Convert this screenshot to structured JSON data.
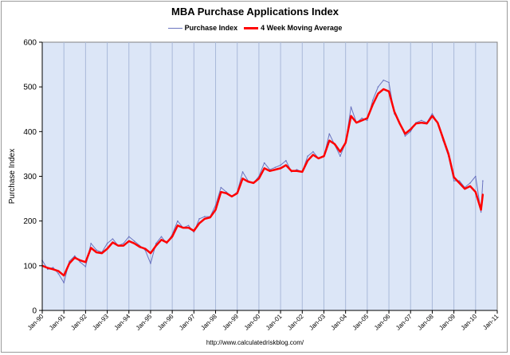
{
  "chart_data": {
    "type": "line",
    "title": "MBA Purchase Applications Index",
    "ylabel": "Purchase Index",
    "xlabel": "",
    "ylim": [
      0,
      600
    ],
    "yticks": [
      0,
      100,
      200,
      300,
      400,
      500,
      600
    ],
    "xlim": [
      1990.0,
      2011.0
    ],
    "xticks": [
      "Jan-90",
      "Jan-91",
      "Jan-92",
      "Jan-93",
      "Jan-94",
      "Jan-95",
      "Jan-96",
      "Jan-97",
      "Jan-98",
      "Jan-99",
      "Jan-00",
      "Jan-01",
      "Jan-02",
      "Jan-03",
      "Jan-04",
      "Jan-05",
      "Jan-06",
      "Jan-07",
      "Jan-08",
      "Jan-09",
      "Jan-10",
      "Jan-11"
    ],
    "grid": "vertical",
    "legend_position": "top",
    "plot_background": "#dce6f7",
    "series": [
      {
        "name": "Purchase Index",
        "color": "#6b74c0",
        "x": [
          "Jan-90",
          "Apr-90",
          "Jul-90",
          "Oct-90",
          "Jan-91",
          "Apr-91",
          "Jul-91",
          "Oct-91",
          "Jan-92",
          "Apr-92",
          "Jul-92",
          "Oct-92",
          "Jan-93",
          "Apr-93",
          "Jul-93",
          "Oct-93",
          "Jan-94",
          "Apr-94",
          "Jul-94",
          "Oct-94",
          "Jan-95",
          "Apr-95",
          "Jul-95",
          "Oct-95",
          "Jan-96",
          "Apr-96",
          "Jul-96",
          "Oct-96",
          "Jan-97",
          "Apr-97",
          "Jul-97",
          "Oct-97",
          "Jan-98",
          "Apr-98",
          "Jul-98",
          "Oct-98",
          "Jan-99",
          "Apr-99",
          "Jul-99",
          "Oct-99",
          "Jan-00",
          "Apr-00",
          "Jul-00",
          "Oct-00",
          "Jan-01",
          "Apr-01",
          "Jul-01",
          "Oct-01",
          "Jan-02",
          "Apr-02",
          "Jul-02",
          "Oct-02",
          "Jan-03",
          "Apr-03",
          "Jul-03",
          "Oct-03",
          "Jan-04",
          "Apr-04",
          "Jul-04",
          "Oct-04",
          "Jan-05",
          "Apr-05",
          "Jul-05",
          "Oct-05",
          "Jan-06",
          "Apr-06",
          "Jul-06",
          "Oct-06",
          "Jan-07",
          "Apr-07",
          "Jul-07",
          "Oct-07",
          "Jan-08",
          "Apr-08",
          "Jul-08",
          "Oct-08",
          "Jan-09",
          "Apr-09",
          "Jul-09",
          "Oct-09",
          "Jan-10",
          "Apr-10",
          "May-10"
        ],
        "values": [
          112,
          92,
          96,
          82,
          62,
          110,
          122,
          108,
          98,
          150,
          135,
          130,
          150,
          160,
          145,
          150,
          165,
          155,
          145,
          135,
          105,
          150,
          165,
          150,
          170,
          200,
          185,
          190,
          175,
          205,
          210,
          210,
          235,
          275,
          265,
          255,
          265,
          310,
          290,
          285,
          300,
          330,
          315,
          320,
          325,
          335,
          310,
          315,
          310,
          345,
          355,
          340,
          345,
          395,
          370,
          345,
          375,
          455,
          420,
          430,
          425,
          470,
          500,
          515,
          510,
          440,
          420,
          390,
          400,
          420,
          425,
          420,
          440,
          420,
          380,
          345,
          290,
          290,
          275,
          285,
          300,
          220,
          290
        ]
      },
      {
        "name": "4 Week Moving Average",
        "color": "#ff0000",
        "x": [
          "Jan-90",
          "Apr-90",
          "Jul-90",
          "Oct-90",
          "Jan-91",
          "Apr-91",
          "Jul-91",
          "Oct-91",
          "Jan-92",
          "Apr-92",
          "Jul-92",
          "Oct-92",
          "Jan-93",
          "Apr-93",
          "Jul-93",
          "Oct-93",
          "Jan-94",
          "Apr-94",
          "Jul-94",
          "Oct-94",
          "Jan-95",
          "Apr-95",
          "Jul-95",
          "Oct-95",
          "Jan-96",
          "Apr-96",
          "Jul-96",
          "Oct-96",
          "Jan-97",
          "Apr-97",
          "Jul-97",
          "Oct-97",
          "Jan-98",
          "Apr-98",
          "Jul-98",
          "Oct-98",
          "Jan-99",
          "Apr-99",
          "Jul-99",
          "Oct-99",
          "Jan-00",
          "Apr-00",
          "Jul-00",
          "Oct-00",
          "Jan-01",
          "Apr-01",
          "Jul-01",
          "Oct-01",
          "Jan-02",
          "Apr-02",
          "Jul-02",
          "Oct-02",
          "Jan-03",
          "Apr-03",
          "Jul-03",
          "Oct-03",
          "Jan-04",
          "Apr-04",
          "Jul-04",
          "Oct-04",
          "Jan-05",
          "Apr-05",
          "Jul-05",
          "Oct-05",
          "Jan-06",
          "Apr-06",
          "Jul-06",
          "Oct-06",
          "Jan-07",
          "Apr-07",
          "Jul-07",
          "Oct-07",
          "Jan-08",
          "Apr-08",
          "Jul-08",
          "Oct-08",
          "Jan-09",
          "Apr-09",
          "Jul-09",
          "Oct-09",
          "Jan-10",
          "Apr-10",
          "May-10"
        ],
        "values": [
          100,
          95,
          92,
          88,
          78,
          105,
          118,
          112,
          108,
          140,
          130,
          128,
          138,
          152,
          145,
          145,
          155,
          150,
          142,
          138,
          128,
          145,
          158,
          152,
          165,
          190,
          185,
          185,
          178,
          195,
          205,
          208,
          225,
          265,
          262,
          255,
          262,
          295,
          288,
          285,
          295,
          318,
          312,
          315,
          318,
          325,
          312,
          312,
          310,
          335,
          348,
          340,
          345,
          380,
          372,
          355,
          375,
          435,
          420,
          425,
          430,
          460,
          485,
          495,
          490,
          445,
          418,
          395,
          405,
          418,
          420,
          418,
          435,
          420,
          385,
          350,
          298,
          285,
          272,
          278,
          265,
          225,
          260
        ]
      }
    ]
  },
  "footer": "http://www.calculatedriskblog.com/"
}
